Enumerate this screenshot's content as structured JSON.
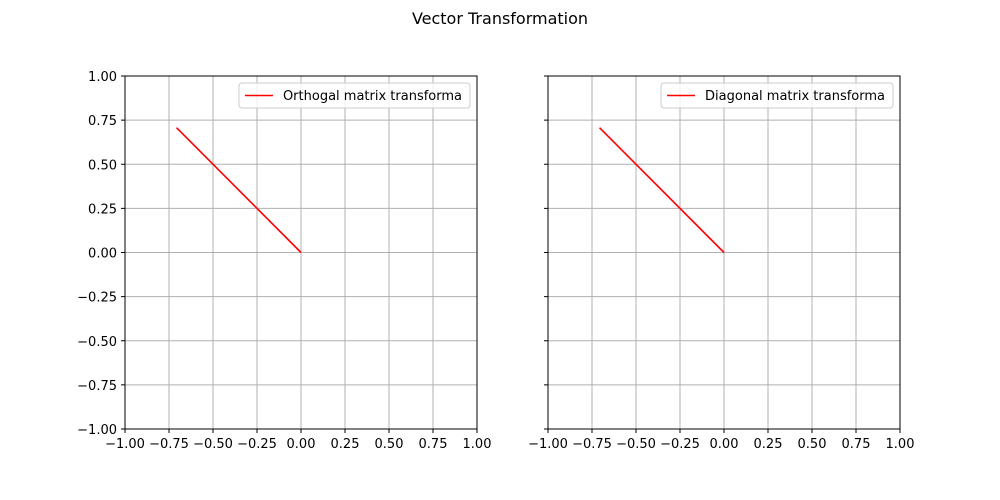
{
  "figure": {
    "title": "Vector Transformation"
  },
  "chart_data": [
    {
      "type": "line",
      "title": "",
      "xlabel": "",
      "ylabel": "",
      "xlim": [
        -1.0,
        1.0
      ],
      "ylim": [
        -1.0,
        1.0
      ],
      "grid": true,
      "legend_position": "top-right",
      "x_ticks": [
        "−1.00",
        "−0.75",
        "−0.50",
        "−0.25",
        "0.00",
        "0.25",
        "0.50",
        "0.75",
        "1.00"
      ],
      "y_ticks": [
        "−1.00",
        "−0.75",
        "−0.50",
        "−0.25",
        "0.00",
        "0.25",
        "0.50",
        "0.75",
        "1.00"
      ],
      "show_y_tick_labels": true,
      "series": [
        {
          "name": "Orthogal matrix transforma",
          "color": "#ff0000",
          "points": [
            [
              0.0,
              0.0
            ],
            [
              -0.7071,
              0.7071
            ]
          ]
        }
      ]
    },
    {
      "type": "line",
      "title": "",
      "xlabel": "",
      "ylabel": "",
      "xlim": [
        -1.0,
        1.0
      ],
      "ylim": [
        -1.0,
        1.0
      ],
      "grid": true,
      "legend_position": "top-right",
      "x_ticks": [
        "−1.00",
        "−0.75",
        "−0.50",
        "−0.25",
        "0.00",
        "0.25",
        "0.50",
        "0.75",
        "1.00"
      ],
      "y_ticks": [
        "−1.00",
        "−0.75",
        "−0.50",
        "−0.25",
        "0.00",
        "0.25",
        "0.50",
        "0.75",
        "1.00"
      ],
      "show_y_tick_labels": false,
      "series": [
        {
          "name": "Diagonal matrix transforma",
          "color": "#ff0000",
          "points": [
            [
              0.0,
              0.0
            ],
            [
              -0.7071,
              0.7071
            ]
          ]
        }
      ]
    }
  ]
}
